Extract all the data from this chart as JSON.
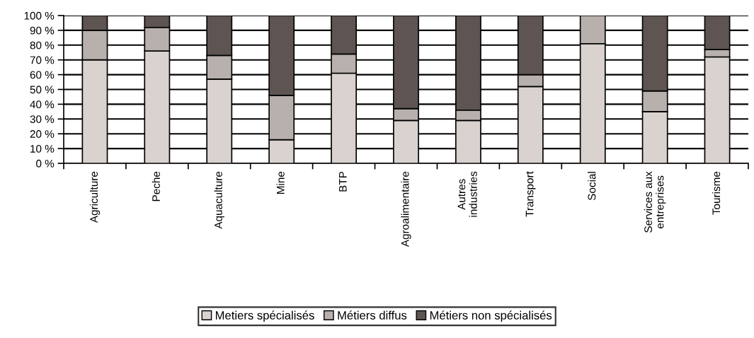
{
  "chart_data": {
    "type": "bar",
    "stacked": true,
    "categories": [
      "Agriculture",
      "Peche",
      "Aquaculture",
      "Mine",
      "BTP",
      "Agroalimentaire",
      "Autres\nindustries",
      "Transport",
      "Social",
      "Services aux\nentreprises",
      "Tourisme"
    ],
    "series": [
      {
        "name": "Metiers spécialisés",
        "color": "#d9d2cf",
        "values": [
          70,
          76,
          57,
          16,
          61,
          29,
          29,
          52,
          81,
          35,
          72
        ]
      },
      {
        "name": "Métiers diffus",
        "color": "#b8b0ad",
        "values": [
          20,
          16,
          16,
          30,
          13,
          8,
          7,
          8,
          19,
          14,
          5
        ]
      },
      {
        "name": "Métiers non spécialisés",
        "color": "#5e5552",
        "values": [
          10,
          8,
          27,
          54,
          26,
          63,
          64,
          40,
          0,
          51,
          23
        ]
      }
    ],
    "ylim": [
      0,
      100
    ],
    "yticks": [
      {
        "value": 0,
        "label": "0 %"
      },
      {
        "value": 10,
        "label": "10 %"
      },
      {
        "value": 20,
        "label": "20 %"
      },
      {
        "value": 30,
        "label": "30 %"
      },
      {
        "value": 40,
        "label": "40 %"
      },
      {
        "value": 50,
        "label": "50 %"
      },
      {
        "value": 60,
        "label": "60 %"
      },
      {
        "value": 70,
        "label": "70 %"
      },
      {
        "value": 80,
        "label": "80 %"
      },
      {
        "value": 90,
        "label": "90 %"
      },
      {
        "value": 100,
        "label": "100 %"
      }
    ],
    "grid": "y",
    "legend": "bottom"
  }
}
